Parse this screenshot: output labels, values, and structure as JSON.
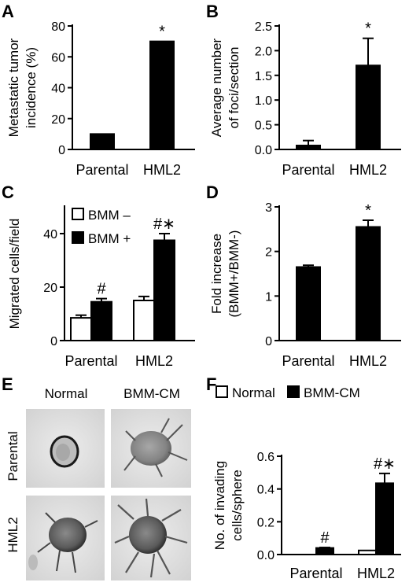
{
  "chart_data": [
    {
      "id": "A",
      "type": "bar",
      "panel_label": "A",
      "categories": [
        "Parental",
        "HML2"
      ],
      "series": [
        {
          "values": [
            10,
            70
          ],
          "errors": [
            0,
            0
          ],
          "marks": [
            "",
            "*"
          ]
        }
      ],
      "ylabel": [
        "Metastatic tumor",
        "incidence (%)"
      ],
      "ylim": [
        0,
        80
      ],
      "yticks": [
        "0",
        "20",
        "40",
        "60",
        "80"
      ],
      "grid": false
    },
    {
      "id": "B",
      "type": "bar",
      "panel_label": "B",
      "categories": [
        "Parental",
        "HML2"
      ],
      "series": [
        {
          "values": [
            0.08,
            1.7
          ],
          "errors": [
            0.1,
            0.55
          ],
          "marks": [
            "",
            "*"
          ]
        }
      ],
      "ylabel": [
        "Average number",
        "of foci/section"
      ],
      "ylim": [
        0,
        2.5
      ],
      "yticks": [
        "0.0",
        "0.5",
        "1.0",
        "1.5",
        "2.0",
        "2.5"
      ],
      "grid": false
    },
    {
      "id": "C",
      "type": "bar",
      "panel_label": "C",
      "categories": [
        "Parental",
        "HML2"
      ],
      "series": [
        {
          "name": "BMM –",
          "color": "#ffffff",
          "values": [
            8.5,
            15
          ],
          "errors": [
            1,
            1.5
          ],
          "marks": [
            "",
            ""
          ]
        },
        {
          "name": "BMM +",
          "color": "#000000",
          "values": [
            14.5,
            37.5
          ],
          "errors": [
            1.2,
            2.5
          ],
          "marks": [
            "#",
            "#∗"
          ]
        }
      ],
      "ylabel": [
        "Migrated cells/field"
      ],
      "ylim": [
        0,
        50
      ],
      "yticks": [
        "0",
        "20",
        "40"
      ],
      "legend": "top-left",
      "grid": false
    },
    {
      "id": "D",
      "type": "bar",
      "panel_label": "D",
      "categories": [
        "Parental",
        "HML2"
      ],
      "series": [
        {
          "values": [
            1.65,
            2.55
          ],
          "errors": [
            0.04,
            0.15
          ],
          "marks": [
            "",
            "*"
          ]
        }
      ],
      "ylabel": [
        "Fold increase",
        "(BMM+/BMM-)"
      ],
      "ylim": [
        0,
        3
      ],
      "yticks": [
        "0",
        "1",
        "2",
        "3"
      ],
      "grid": false
    },
    {
      "id": "F",
      "type": "bar",
      "panel_label": "F",
      "categories": [
        "Parental",
        "HML2"
      ],
      "series": [
        {
          "name": "Normal",
          "color": "#ffffff",
          "values": [
            0.0,
            0.025
          ],
          "errors": [
            0,
            0
          ],
          "marks": [
            "",
            ""
          ]
        },
        {
          "name": "BMM-CM",
          "color": "#000000",
          "values": [
            0.04,
            0.435
          ],
          "errors": [
            0.003,
            0.06
          ],
          "marks": [
            "#",
            "#∗"
          ]
        }
      ],
      "ylabel": [
        "No. of invading",
        "cells/sphere"
      ],
      "ylim": [
        0,
        0.6
      ],
      "yticks": [
        "0.0",
        "0.2",
        "0.4",
        "0.6"
      ],
      "legend": "top",
      "grid": false
    }
  ],
  "panel_e": {
    "label": "E",
    "col_headers": [
      "Normal",
      "BMM-CM"
    ],
    "row_labels": [
      "Parental",
      "HML2"
    ]
  }
}
